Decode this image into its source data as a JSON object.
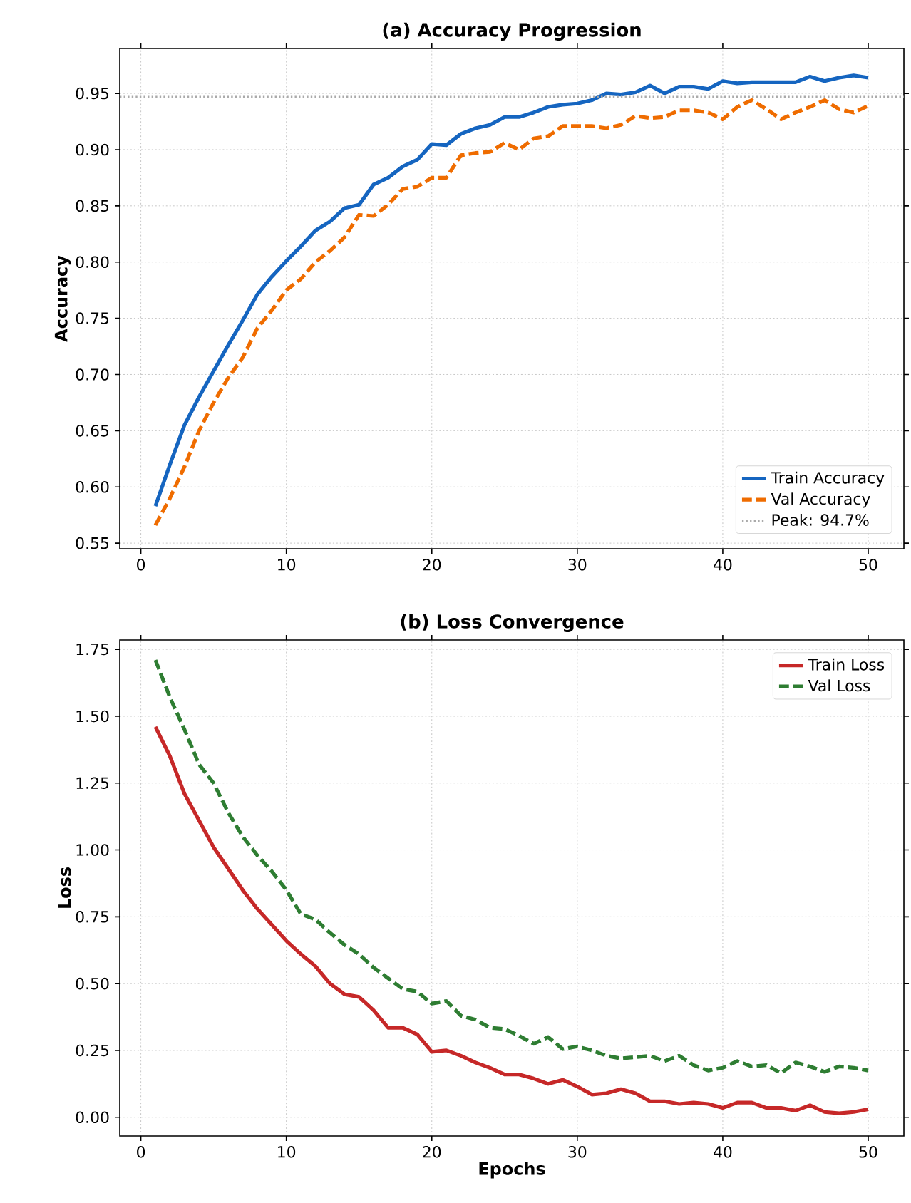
{
  "chart_data": [
    {
      "type": "line",
      "title": "(a) Accuracy Progression",
      "ylabel": "Accuracy",
      "x": [
        1,
        2,
        3,
        4,
        5,
        6,
        7,
        8,
        9,
        10,
        11,
        12,
        13,
        14,
        15,
        16,
        17,
        18,
        19,
        20,
        21,
        22,
        23,
        24,
        25,
        26,
        27,
        28,
        29,
        30,
        31,
        32,
        33,
        34,
        35,
        36,
        37,
        38,
        39,
        40,
        41,
        42,
        43,
        44,
        45,
        46,
        47,
        48,
        49,
        50
      ],
      "series": [
        {
          "name": "Train Accuracy",
          "color": "#1565c0",
          "line_style": "solid",
          "values": [
            0.583,
            0.62,
            0.655,
            0.68,
            0.703,
            0.726,
            0.748,
            0.771,
            0.787,
            0.801,
            0.814,
            0.828,
            0.836,
            0.848,
            0.851,
            0.869,
            0.875,
            0.885,
            0.891,
            0.905,
            0.904,
            0.914,
            0.919,
            0.922,
            0.929,
            0.929,
            0.933,
            0.938,
            0.94,
            0.941,
            0.944,
            0.95,
            0.949,
            0.951,
            0.957,
            0.95,
            0.956,
            0.956,
            0.954,
            0.961,
            0.959,
            0.96,
            0.96,
            0.96,
            0.96,
            0.965,
            0.961,
            0.964,
            0.966,
            0.964
          ]
        },
        {
          "name": "Val Accuracy",
          "color": "#ef6c00",
          "line_style": "dashed",
          "values": [
            0.566,
            0.59,
            0.618,
            0.65,
            0.675,
            0.697,
            0.715,
            0.741,
            0.757,
            0.775,
            0.785,
            0.8,
            0.81,
            0.822,
            0.842,
            0.841,
            0.851,
            0.865,
            0.867,
            0.875,
            0.875,
            0.895,
            0.897,
            0.898,
            0.906,
            0.9,
            0.91,
            0.912,
            0.921,
            0.921,
            0.921,
            0.919,
            0.922,
            0.93,
            0.928,
            0.929,
            0.935,
            0.935,
            0.933,
            0.927,
            0.938,
            0.944,
            0.936,
            0.927,
            0.933,
            0.938,
            0.944,
            0.936,
            0.933,
            0.939
          ]
        }
      ],
      "ref_lines": [
        {
          "axis": "y",
          "value": 0.947,
          "label": "Peak: 94.7%",
          "color": "#aaaaaa",
          "line_style": "dotted"
        }
      ],
      "xlim": [
        -1.45,
        52.45
      ],
      "ylim": [
        0.545,
        0.99
      ],
      "xticks": [
        0,
        10,
        20,
        30,
        40,
        50
      ],
      "yticks": [
        {
          "value": 0.55,
          "label": "0.55"
        },
        {
          "value": 0.6,
          "label": "0.60"
        },
        {
          "value": 0.65,
          "label": "0.65"
        },
        {
          "value": 0.7,
          "label": "0.70"
        },
        {
          "value": 0.75,
          "label": "0.75"
        },
        {
          "value": 0.8,
          "label": "0.80"
        },
        {
          "value": 0.85,
          "label": "0.85"
        },
        {
          "value": 0.9,
          "label": "0.90"
        },
        {
          "value": 0.95,
          "label": "0.95"
        }
      ],
      "grid": true,
      "legend": "bottom right",
      "marker": "none"
    },
    {
      "type": "line",
      "title": "(b) Loss Convergence",
      "xlabel": "Epochs",
      "ylabel": "Loss",
      "x": [
        1,
        2,
        3,
        4,
        5,
        6,
        7,
        8,
        9,
        10,
        11,
        12,
        13,
        14,
        15,
        16,
        17,
        18,
        19,
        20,
        21,
        22,
        23,
        24,
        25,
        26,
        27,
        28,
        29,
        30,
        31,
        32,
        33,
        34,
        35,
        36,
        37,
        38,
        39,
        40,
        41,
        42,
        43,
        44,
        45,
        46,
        47,
        48,
        49,
        50
      ],
      "series": [
        {
          "name": "Train Loss",
          "color": "#c62828",
          "line_style": "solid",
          "values": [
            1.46,
            1.35,
            1.21,
            1.11,
            1.01,
            0.93,
            0.85,
            0.78,
            0.72,
            0.66,
            0.61,
            0.565,
            0.5,
            0.46,
            0.45,
            0.4,
            0.335,
            0.335,
            0.31,
            0.245,
            0.25,
            0.23,
            0.205,
            0.185,
            0.16,
            0.16,
            0.145,
            0.125,
            0.14,
            0.115,
            0.085,
            0.09,
            0.105,
            0.09,
            0.06,
            0.06,
            0.05,
            0.055,
            0.05,
            0.035,
            0.055,
            0.055,
            0.035,
            0.035,
            0.025,
            0.045,
            0.02,
            0.015,
            0.02,
            0.03
          ]
        },
        {
          "name": "Val Loss",
          "color": "#2e7d32",
          "line_style": "dashed",
          "values": [
            1.71,
            1.57,
            1.45,
            1.32,
            1.25,
            1.14,
            1.05,
            0.98,
            0.92,
            0.85,
            0.76,
            0.74,
            0.69,
            0.645,
            0.61,
            0.56,
            0.52,
            0.48,
            0.47,
            0.425,
            0.435,
            0.38,
            0.365,
            0.335,
            0.33,
            0.305,
            0.275,
            0.3,
            0.255,
            0.265,
            0.25,
            0.23,
            0.22,
            0.225,
            0.23,
            0.21,
            0.23,
            0.195,
            0.175,
            0.185,
            0.21,
            0.19,
            0.195,
            0.165,
            0.205,
            0.19,
            0.17,
            0.19,
            0.185,
            0.175
          ]
        }
      ],
      "xlim": [
        -1.45,
        52.45
      ],
      "ylim": [
        -0.07,
        1.785
      ],
      "xticks": [
        0,
        10,
        20,
        30,
        40,
        50
      ],
      "yticks": [
        {
          "value": 0,
          "label": "0.00"
        },
        {
          "value": 0.25,
          "label": "0.25"
        },
        {
          "value": 0.5,
          "label": "0.50"
        },
        {
          "value": 0.75,
          "label": "0.75"
        },
        {
          "value": 1.0,
          "label": "1.00"
        },
        {
          "value": 1.25,
          "label": "1.25"
        },
        {
          "value": 1.5,
          "label": "1.50"
        },
        {
          "value": 1.75,
          "label": "1.75"
        }
      ],
      "grid": true,
      "legend": "top right",
      "marker": "none"
    }
  ]
}
